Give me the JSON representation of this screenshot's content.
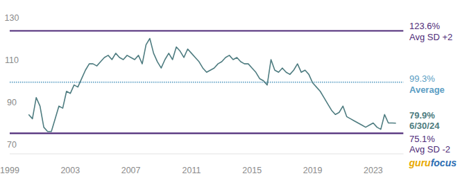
{
  "chart_data": {
    "type": "line",
    "x": [
      2000.25,
      2000.5,
      2000.75,
      2001,
      2001.25,
      2001.5,
      2001.75,
      2002,
      2002.25,
      2002.5,
      2002.75,
      2003,
      2003.25,
      2003.5,
      2003.75,
      2004,
      2004.25,
      2004.5,
      2004.75,
      2005,
      2005.25,
      2005.5,
      2005.75,
      2006,
      2006.25,
      2006.5,
      2006.75,
      2007,
      2007.25,
      2007.5,
      2007.75,
      2008,
      2008.25,
      2008.5,
      2008.75,
      2009,
      2009.25,
      2009.5,
      2009.75,
      2010,
      2010.25,
      2010.5,
      2010.75,
      2011,
      2011.25,
      2011.5,
      2011.75,
      2012,
      2012.25,
      2012.5,
      2012.75,
      2013,
      2013.25,
      2013.5,
      2013.75,
      2014,
      2014.25,
      2014.5,
      2014.75,
      2015,
      2015.25,
      2015.5,
      2015.75,
      2016,
      2016.25,
      2016.5,
      2016.75,
      2017,
      2017.25,
      2017.5,
      2017.75,
      2018,
      2018.25,
      2018.5,
      2018.75,
      2019,
      2019.25,
      2019.5,
      2019.75,
      2020,
      2020.25,
      2020.5,
      2020.75,
      2021,
      2021.25,
      2021.5,
      2021.75,
      2022,
      2022.25,
      2022.5,
      2022.75,
      2023,
      2023.25,
      2023.5,
      2023.75,
      2024,
      2024.25,
      2024.5
    ],
    "values": [
      84,
      82,
      92,
      88,
      78,
      76,
      76,
      82,
      88,
      87,
      95,
      94,
      98,
      97,
      101,
      105,
      108,
      108,
      107,
      109,
      111,
      112,
      110,
      113,
      111,
      110,
      112,
      111,
      110,
      112,
      108,
      117,
      120,
      113,
      109,
      106,
      110,
      113,
      110,
      116,
      114,
      111,
      115,
      113,
      111,
      109,
      106,
      104,
      105,
      106,
      108,
      109,
      111,
      112,
      110,
      111,
      109,
      108,
      108,
      106,
      104,
      101,
      100,
      98,
      110,
      105,
      104,
      106,
      104,
      103,
      105,
      108,
      104,
      105,
      103,
      99,
      97,
      95,
      92,
      89,
      86,
      84,
      85,
      88,
      83,
      82,
      81,
      80,
      79,
      78,
      79,
      80,
      78,
      77,
      84,
      80,
      80,
      79.9
    ],
    "color": "#4e7c80",
    "xlim": [
      1999,
      2025
    ],
    "xticks": [
      1999,
      2003,
      2007,
      2011,
      2015,
      2019,
      2023
    ],
    "ylim": [
      70,
      130
    ],
    "yticks": [
      70,
      90,
      110,
      130
    ],
    "grid": false,
    "reference_lines": [
      {
        "value": 123.6,
        "label": "123.6%",
        "name": "Avg SD +2",
        "color": "#4e2a78",
        "line_style": "solid"
      },
      {
        "value": 99.3,
        "label": "99.3%",
        "name": "Average",
        "color": "#5b9ec4",
        "line_style": "dotted"
      },
      {
        "value": 75.1,
        "label": "75.1%",
        "name": "Avg SD -2",
        "color": "#4e2a78",
        "line_style": "solid"
      }
    ],
    "annotations": [
      {
        "value": 79.9,
        "label": "79.9%",
        "name": "6/30/24",
        "color": "#4e7c80"
      }
    ],
    "source": "gurufocus"
  }
}
